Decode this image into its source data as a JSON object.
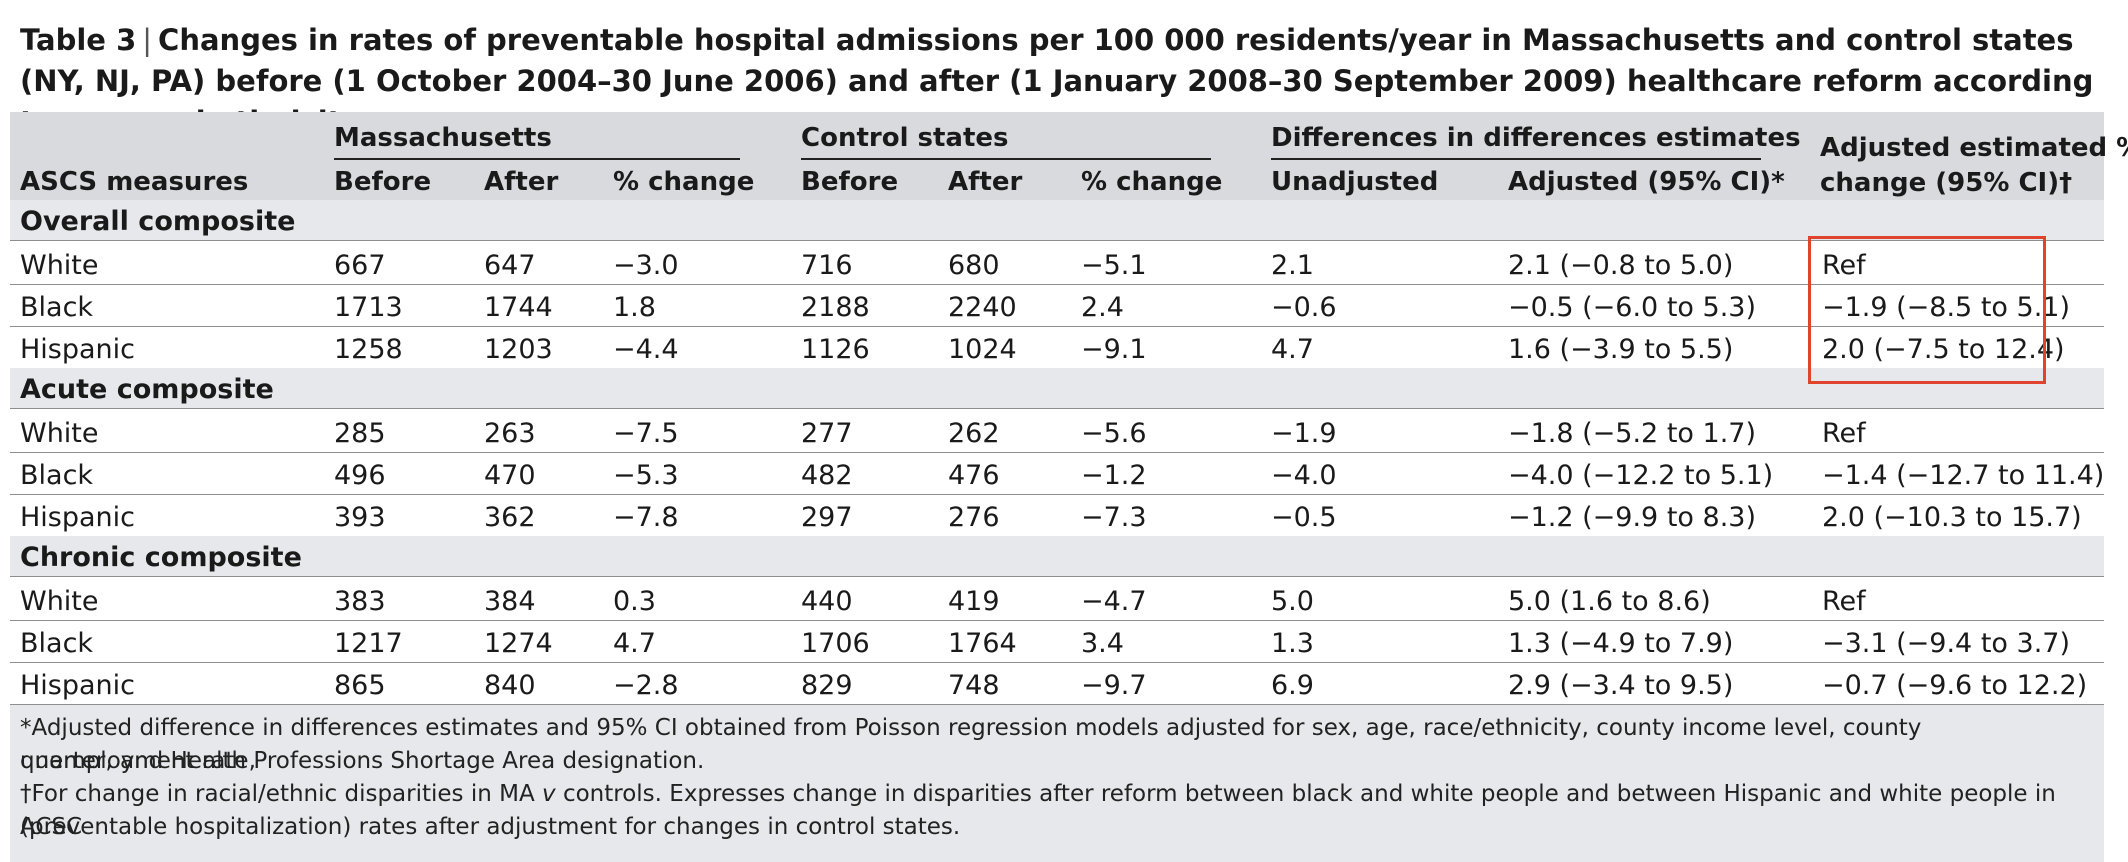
{
  "title": {
    "label": "Table 3",
    "separator": "|",
    "text": "Changes in rates of preventable hospital admissions per 100 000 residents/year in Massachusetts and control states (NY, NJ, PA) before (1 October 2004–30 June 2006) and after (1 January 2008–30 September 2009) healthcare reform according to race and ethnicity"
  },
  "header": {
    "group_massachusetts": "Massachusetts",
    "group_control": "Control states",
    "group_did": "Differences in differences estimates",
    "adjusted_pct_line1": "Adjusted estimated %",
    "adjusted_pct_line2": "change (95% CI)†",
    "measures": "ASCS measures",
    "ma_before": "Before",
    "ma_after": "After",
    "ma_change": "% change",
    "cs_before": "Before",
    "cs_after": "After",
    "cs_change": "% change",
    "unadjusted": "Unadjusted",
    "adjusted": "Adjusted (95% CI)*"
  },
  "sections": [
    {
      "name": "Overall composite",
      "rows": [
        [
          "White",
          "667",
          "647",
          "−3.0",
          "716",
          "680",
          "−5.1",
          "2.1",
          "2.1 (−0.8 to 5.0)",
          "Ref"
        ],
        [
          "Black",
          "1713",
          "1744",
          "1.8",
          "2188",
          "2240",
          "2.4",
          "−0.6",
          "−0.5 (−6.0 to 5.3)",
          "−1.9 (−8.5 to 5.1)"
        ],
        [
          "Hispanic",
          "1258",
          "1203",
          "−4.4",
          "1126",
          "1024",
          "−9.1",
          "4.7",
          "1.6 (−3.9 to 5.5)",
          "2.0 (−7.5 to 12.4)"
        ]
      ]
    },
    {
      "name": "Acute composite",
      "rows": [
        [
          "White",
          "285",
          "263",
          "−7.5",
          "277",
          "262",
          "−5.6",
          "−1.9",
          "−1.8 (−5.2 to 1.7)",
          "Ref"
        ],
        [
          "Black",
          "496",
          "470",
          "−5.3",
          "482",
          "476",
          "−1.2",
          "−4.0",
          "−4.0 (−12.2 to 5.1)",
          "−1.4 (−12.7 to 11.4)"
        ],
        [
          "Hispanic",
          "393",
          "362",
          "−7.8",
          "297",
          "276",
          "−7.3",
          "−0.5",
          "−1.2 (−9.9 to 8.3)",
          "2.0 (−10.3 to 15.7)"
        ]
      ]
    },
    {
      "name": "Chronic composite",
      "rows": [
        [
          "White",
          "383",
          "384",
          "0.3",
          "440",
          "419",
          "−4.7",
          "5.0",
          "5.0 (1.6 to 8.6)",
          "Ref"
        ],
        [
          "Black",
          "1217",
          "1274",
          "4.7",
          "1706",
          "1764",
          "3.4",
          "1.3",
          "1.3 (−4.9 to 7.9)",
          "−3.1 (−9.4 to 3.7)"
        ],
        [
          "Hispanic",
          "865",
          "840",
          "−2.8",
          "829",
          "748",
          "−9.7",
          "6.9",
          "2.9 (−3.4 to 9.5)",
          "−0.7 (−9.6 to 12.2)"
        ]
      ]
    }
  ],
  "footnotes": {
    "adjusted_1": "*Adjusted difference in differences estimates and 95% CI obtained from Poisson regression models adjusted for sex, age, race/ethnicity, county income level, county unemployment rate,",
    "adjusted_2": "quarter, and Health Professions Shortage Area designation.",
    "dagger_1a": "†For change in racial/ethnic disparities in MA ",
    "dagger_1b": "v",
    "dagger_1c": " controls. Expresses change in disparities after reform between black and white people and between Hispanic and white people in ACSC",
    "dagger_2": "(preventable hospitalization) rates after adjustment for changes in control states."
  },
  "colors": {
    "header_band": "#d9dade",
    "section_band": "#e7e8eb",
    "highlight_box": "#e0442e"
  }
}
